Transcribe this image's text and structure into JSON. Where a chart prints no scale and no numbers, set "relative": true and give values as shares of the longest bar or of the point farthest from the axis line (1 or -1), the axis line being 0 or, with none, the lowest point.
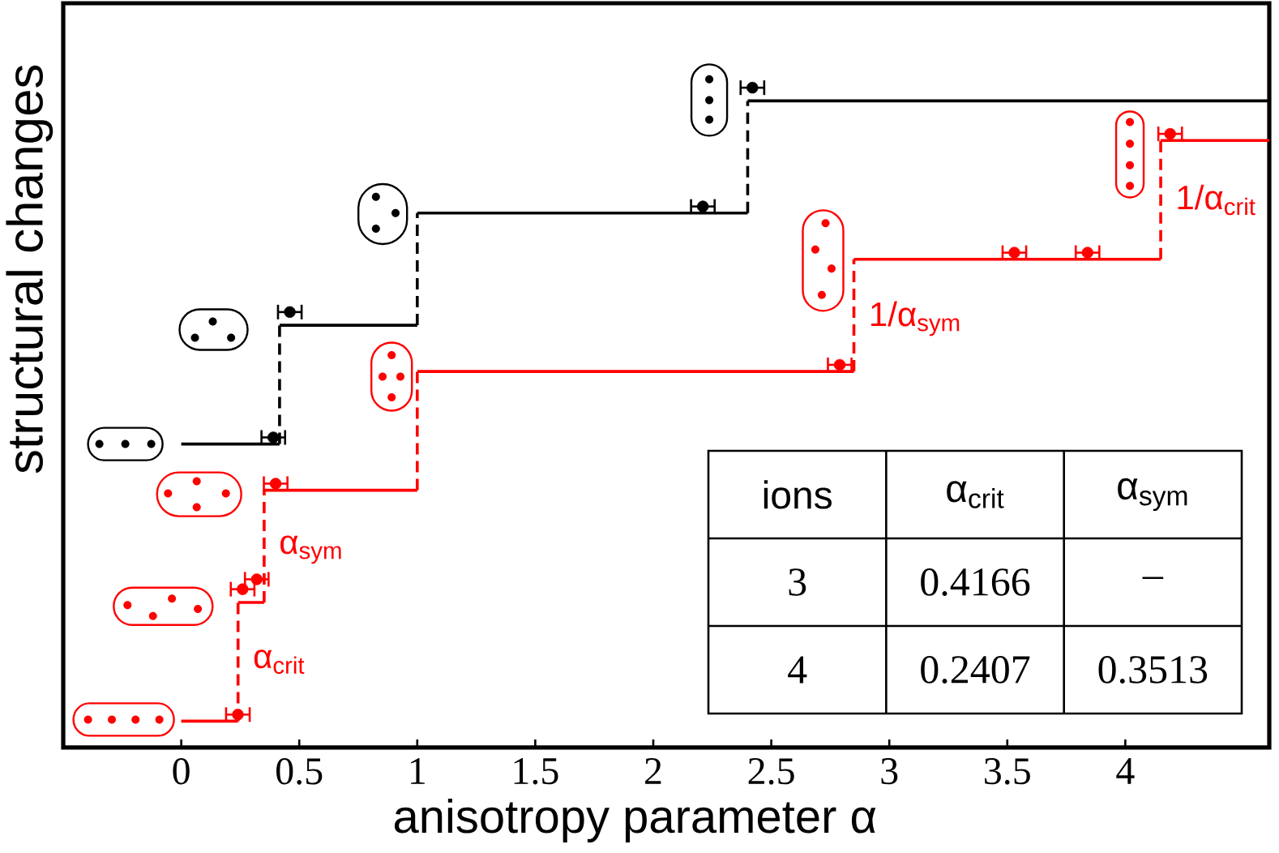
{
  "chart_data": {
    "type": "step",
    "xlabel": "anisotropy parameter α",
    "ylabel": "structural changes",
    "xlim": [
      -0.5,
      4.61
    ],
    "xticks": [
      0,
      0.5,
      1,
      1.5,
      2,
      2.5,
      3,
      3.5,
      4
    ],
    "relative": true,
    "tick_labels": "x",
    "marker": "circle",
    "series": [
      {
        "marker": "none",
        "color": "#000000",
        "x": [
          0,
          0.4166,
          1,
          2.4,
          4.61
        ],
        "values": [
          0.46,
          0.64,
          0.81,
          0.98,
          0.98
        ]
      },
      {
        "marker": "none",
        "color": "#ff0000",
        "x": [
          0,
          0.2407,
          0.3513,
          1,
          2.85,
          4.15,
          4.61
        ],
        "values": [
          0.04,
          0.22,
          0.39,
          0.57,
          0.74,
          0.92,
          0.92
        ]
      },
      {
        "type": "scatter",
        "color": "#000000",
        "x": [
          0.39,
          0.46,
          2.21,
          2.42
        ],
        "values": [
          0.47,
          0.66,
          0.82,
          1
        ],
        "xerrors": [
          0.05,
          0.05,
          0.05,
          0.05
        ]
      },
      {
        "type": "scatter",
        "color": "#ff0000",
        "x": [
          0.24,
          0.26,
          0.32,
          0.4,
          2.79,
          3.53,
          3.84,
          4.19
        ],
        "values": [
          0.05,
          0.24,
          0.255,
          0.4,
          0.58,
          0.75,
          0.75,
          0.93
        ],
        "xerrors": [
          0.05,
          0.05,
          0.05,
          0.05,
          0.05,
          0.05,
          0.05,
          0.05
        ]
      }
    ],
    "annotations": [
      {
        "text": "α$_{crit}$",
        "x": 0.2407,
        "y": 0.13
      },
      {
        "text": "α$_{sym}$",
        "x": 0.3513,
        "y": 0.3
      },
      {
        "text": "1/α$_{sym}$",
        "x": 2.85,
        "y": 0.65
      },
      {
        "text": "1/α$_{crit}$",
        "x": 4.15,
        "y": 0.83
      },
      "ions",
      "α$_{crit}$",
      "α$_{sym}$",
      "3",
      "0.4166",
      "–",
      "4",
      "0.2407",
      "0.3513"
    ]
  }
}
